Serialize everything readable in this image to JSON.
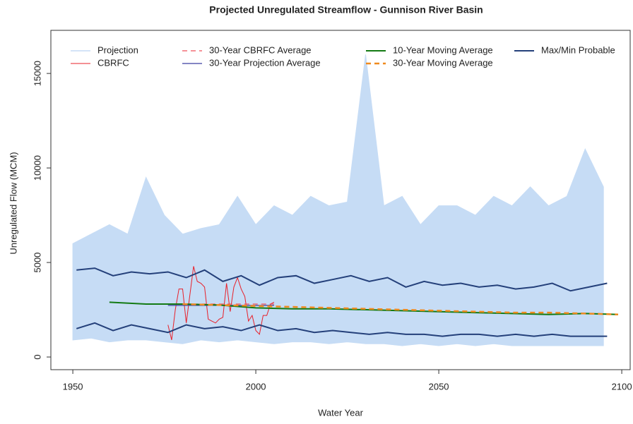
{
  "chart_data": {
    "type": "line",
    "title": "Projected Unregulated Streamflow - Gunnison River Basin",
    "x_label": "Water Year",
    "y_label": "Unregulated Flow (MCM)",
    "xlim": [
      1944,
      2102.3
    ],
    "ylim": [
      -670,
      17280
    ],
    "xticks": [
      1950,
      2000,
      2050,
      2100
    ],
    "yticks": [
      0,
      5000,
      10000,
      15000
    ],
    "series": [
      {
        "name": "Projection",
        "color": "#c6dcf5",
        "style": "band",
        "x": [
          1950,
          1955,
          1960,
          1965,
          1970,
          1975,
          1980,
          1985,
          1990,
          1995,
          2000,
          2005,
          2010,
          2015,
          2020,
          2025,
          2030,
          2035,
          2040,
          2045,
          2050,
          2055,
          2060,
          2065,
          2070,
          2075,
          2080,
          2085,
          2090,
          2095
        ],
        "values": [
          6000,
          6500,
          7000,
          6500,
          9500,
          7500,
          6500,
          6800,
          7000,
          8500,
          7000,
          8000,
          7500,
          8500,
          8000,
          8200,
          16000,
          8000,
          8500,
          7000,
          8000,
          8000,
          7500,
          8500,
          8000,
          9000,
          8000,
          8500,
          11000,
          9000
        ],
        "lower": [
          900,
          1000,
          800,
          900,
          900,
          800,
          700,
          900,
          800,
          900,
          800,
          700,
          800,
          800,
          700,
          800,
          700,
          700,
          600,
          700,
          600,
          700,
          600,
          700,
          600,
          600,
          600,
          600,
          600,
          600
        ]
      },
      {
        "name": "CBRFC",
        "color": "#e8202a",
        "style": "line",
        "width": 1,
        "x": [
          1976,
          1977,
          1978,
          1979,
          1980,
          1981,
          1982,
          1983,
          1984,
          1985,
          1986,
          1987,
          1988,
          1989,
          1990,
          1991,
          1992,
          1993,
          1994,
          1995,
          1996,
          1997,
          1998,
          1999,
          2000,
          2001,
          2002,
          2003,
          2004,
          2005
        ],
        "values": [
          1700,
          900,
          2500,
          3600,
          3600,
          1800,
          3300,
          4800,
          4000,
          3900,
          3700,
          2000,
          1900,
          1800,
          2000,
          2100,
          3900,
          2400,
          3700,
          4200,
          3600,
          3200,
          1900,
          2200,
          1400,
          1200,
          2200,
          2200,
          2800,
          2900
        ]
      },
      {
        "name": "30-Year CBRFC Average",
        "color": "#f0505a",
        "style": "dashed",
        "width": 1.2,
        "x": [
          1976,
          2005
        ],
        "values": [
          2800,
          2800
        ]
      },
      {
        "name": "30-Year Projection Average",
        "color": "#3a3fa0",
        "style": "line",
        "width": 1.2,
        "x": [
          1976,
          2005
        ],
        "values": [
          2730,
          2730
        ]
      },
      {
        "name": "10-Year Moving Average",
        "color": "#137a13",
        "style": "line",
        "width": 2,
        "x": [
          1960,
          1970,
          1980,
          1990,
          2000,
          2010,
          2020,
          2030,
          2040,
          2050,
          2060,
          2070,
          2080,
          2090,
          2099
        ],
        "values": [
          2900,
          2800,
          2800,
          2750,
          2600,
          2550,
          2550,
          2500,
          2450,
          2400,
          2350,
          2300,
          2250,
          2300,
          2250
        ]
      },
      {
        "name": "30-Year Moving Average",
        "color": "#f08a1e",
        "style": "dashed",
        "width": 2.5,
        "x": [
          1980,
          1990,
          2000,
          2010,
          2020,
          2030,
          2040,
          2050,
          2060,
          2070,
          2080,
          2090,
          2099
        ],
        "values": [
          2800,
          2750,
          2700,
          2650,
          2600,
          2550,
          2500,
          2450,
          2400,
          2350,
          2350,
          2300,
          2250
        ]
      },
      {
        "name": "Max/Min Probable",
        "color": "#24407a",
        "style": "pair",
        "width": 2,
        "x": [
          1951,
          1956,
          1961,
          1966,
          1971,
          1976,
          1981,
          1986,
          1991,
          1996,
          2001,
          2006,
          2011,
          2016,
          2021,
          2026,
          2031,
          2036,
          2041,
          2046,
          2051,
          2056,
          2061,
          2066,
          2071,
          2076,
          2081,
          2086,
          2091,
          2096
        ],
        "values": [
          4600,
          4700,
          4300,
          4500,
          4400,
          4500,
          4200,
          4600,
          4000,
          4300,
          3800,
          4200,
          4300,
          3900,
          4100,
          4300,
          4000,
          4200,
          3700,
          4000,
          3800,
          3900,
          3700,
          3800,
          3600,
          3700,
          3900,
          3500,
          3700,
          3900
        ],
        "lower": [
          1500,
          1800,
          1400,
          1700,
          1500,
          1300,
          1700,
          1500,
          1600,
          1400,
          1700,
          1400,
          1500,
          1300,
          1400,
          1300,
          1200,
          1300,
          1200,
          1200,
          1100,
          1200,
          1200,
          1100,
          1200,
          1100,
          1200,
          1100,
          1100,
          1100
        ]
      }
    ]
  }
}
